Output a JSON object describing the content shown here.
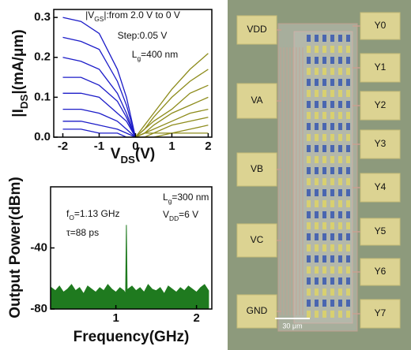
{
  "chart_data": [
    {
      "type": "line",
      "annotations": [
        {
          "parts": [
            "|V",
            "GS",
            "|:from 2.0 V to 0 V"
          ]
        },
        {
          "parts": [
            "Step:0.05 V"
          ]
        },
        {
          "parts": [
            "L",
            "g",
            "=400 nm"
          ]
        }
      ],
      "x_label": {
        "parts": [
          "V",
          "DS",
          "(V)"
        ]
      },
      "y_label": {
        "parts": [
          "|I",
          "DS",
          "|(mA/μm)"
        ]
      },
      "xlim": [
        -2.25,
        2.1
      ],
      "ylim": [
        0,
        0.32
      ],
      "xticks": [
        -2,
        -1,
        0,
        1,
        2
      ],
      "yticks": [
        {
          "value": 0,
          "label": "0.0"
        },
        {
          "value": 0.1,
          "label": "0.1"
        },
        {
          "value": 0.2,
          "label": "0.2"
        },
        {
          "value": 0.3,
          "label": "0.3"
        }
      ],
      "series": [
        {
          "color": "#1c1cc8",
          "x": [
            -2,
            -1.5,
            -1,
            -0.5,
            -0.25,
            0
          ],
          "values": [
            0.3,
            0.29,
            0.26,
            0.17,
            0.1,
            0
          ]
        },
        {
          "color": "#1c1cc8",
          "x": [
            -2,
            -1.5,
            -1,
            -0.5,
            -0.25,
            0
          ],
          "values": [
            0.25,
            0.24,
            0.22,
            0.14,
            0.08,
            0
          ]
        },
        {
          "color": "#1c1cc8",
          "x": [
            -2,
            -1.5,
            -1,
            -0.5,
            -0.25,
            0
          ],
          "values": [
            0.2,
            0.19,
            0.17,
            0.11,
            0.06,
            0
          ]
        },
        {
          "color": "#1c1cc8",
          "x": [
            -2,
            -1.5,
            -1,
            -0.5,
            -0.25,
            0
          ],
          "values": [
            0.15,
            0.15,
            0.13,
            0.09,
            0.05,
            0
          ]
        },
        {
          "color": "#1c1cc8",
          "x": [
            -2,
            -1.5,
            -1,
            -0.5,
            -0.25,
            0
          ],
          "values": [
            0.11,
            0.11,
            0.1,
            0.06,
            0.04,
            0
          ]
        },
        {
          "color": "#1c1cc8",
          "x": [
            -2,
            -1.5,
            -1,
            -0.5,
            -0.25,
            0
          ],
          "values": [
            0.07,
            0.07,
            0.06,
            0.04,
            0.02,
            0
          ]
        },
        {
          "color": "#1c1cc8",
          "x": [
            -2,
            -1.5,
            -1,
            -0.5,
            -0.25,
            0
          ],
          "values": [
            0.04,
            0.04,
            0.03,
            0.02,
            0.01,
            0
          ]
        },
        {
          "color": "#1c1cc8",
          "x": [
            -2,
            -1.5,
            -1,
            -0.5,
            -0.25,
            0
          ],
          "values": [
            0.02,
            0.02,
            0.01,
            0.01,
            0,
            0
          ]
        },
        {
          "color": "#8e8c1c",
          "x": [
            0,
            0.25,
            0.5,
            1,
            1.5,
            2
          ],
          "values": [
            0,
            0.03,
            0.06,
            0.12,
            0.17,
            0.21
          ]
        },
        {
          "color": "#8e8c1c",
          "x": [
            0,
            0.25,
            0.5,
            1,
            1.5,
            2
          ],
          "values": [
            0,
            0.02,
            0.05,
            0.1,
            0.14,
            0.17
          ]
        },
        {
          "color": "#8e8c1c",
          "x": [
            0,
            0.25,
            0.5,
            1,
            1.5,
            2
          ],
          "values": [
            0,
            0.02,
            0.04,
            0.07,
            0.11,
            0.13
          ]
        },
        {
          "color": "#8e8c1c",
          "x": [
            0,
            0.25,
            0.5,
            1,
            1.5,
            2
          ],
          "values": [
            0,
            0.01,
            0.03,
            0.06,
            0.08,
            0.1
          ]
        },
        {
          "color": "#8e8c1c",
          "x": [
            0,
            0.25,
            0.5,
            1,
            1.5,
            2
          ],
          "values": [
            0,
            0.01,
            0.02,
            0.04,
            0.06,
            0.07
          ]
        },
        {
          "color": "#8e8c1c",
          "x": [
            0,
            0.25,
            0.5,
            1,
            1.5,
            2
          ],
          "values": [
            0,
            0.01,
            0.01,
            0.03,
            0.04,
            0.05
          ]
        },
        {
          "color": "#8e8c1c",
          "x": [
            0,
            0.25,
            0.5,
            1,
            1.5,
            2
          ],
          "values": [
            0,
            0,
            0.01,
            0.01,
            0.02,
            0.03
          ]
        },
        {
          "color": "#8e8c1c",
          "x": [
            0,
            0.25,
            0.5,
            1,
            1.5,
            2
          ],
          "values": [
            0,
            0,
            0,
            0.01,
            0.01,
            0.01
          ]
        }
      ]
    },
    {
      "type": "area",
      "annotations": [
        {
          "parts": [
            "f",
            "O",
            "=1.13 GHz"
          ]
        },
        {
          "parts": [
            "τ=88 ps"
          ]
        },
        {
          "parts": [
            "L",
            "g",
            "=300 nm"
          ]
        },
        {
          "parts": [
            "V",
            "DD",
            "=6 V"
          ]
        }
      ],
      "x_label": {
        "parts": [
          "Frequency(GHz)"
        ]
      },
      "y_label": {
        "parts": [
          "Output Power(dBm)"
        ]
      },
      "xlim": [
        0.19,
        2.19
      ],
      "ylim": [
        -80,
        0
      ],
      "xticks": [
        1,
        2
      ],
      "yticks": [
        -80,
        -40
      ],
      "series": [
        {
          "color": "#1f7a1f",
          "x": [
            0.2,
            0.25,
            0.3,
            0.35,
            0.4,
            0.45,
            0.5,
            0.55,
            0.6,
            0.65,
            0.7,
            0.75,
            0.8,
            0.85,
            0.9,
            0.95,
            1.0,
            1.05,
            1.1,
            1.12,
            1.13,
            1.14,
            1.15,
            1.2,
            1.25,
            1.3,
            1.35,
            1.4,
            1.45,
            1.5,
            1.55,
            1.6,
            1.65,
            1.7,
            1.75,
            1.8,
            1.85,
            1.9,
            1.95,
            2.0,
            2.05,
            2.1,
            2.15
          ],
          "values": [
            -66,
            -68,
            -65,
            -69,
            -67,
            -64,
            -68,
            -66,
            -70,
            -65,
            -67,
            -69,
            -66,
            -68,
            -64,
            -67,
            -69,
            -66,
            -68,
            -70,
            -25,
            -70,
            -67,
            -65,
            -68,
            -66,
            -69,
            -64,
            -67,
            -68,
            -66,
            -70,
            -65,
            -67,
            -69,
            -66,
            -68,
            -65,
            -67,
            -69,
            -66,
            -64,
            -68
          ]
        }
      ]
    }
  ],
  "micrograph": {
    "left_pads": [
      "VDD",
      "VA",
      "VB",
      "VC",
      "GND"
    ],
    "right_pads": [
      "Y0",
      "Y1",
      "Y2",
      "Y3",
      "Y4",
      "Y5",
      "Y6",
      "Y7"
    ],
    "scale_bar": "30 μm"
  }
}
